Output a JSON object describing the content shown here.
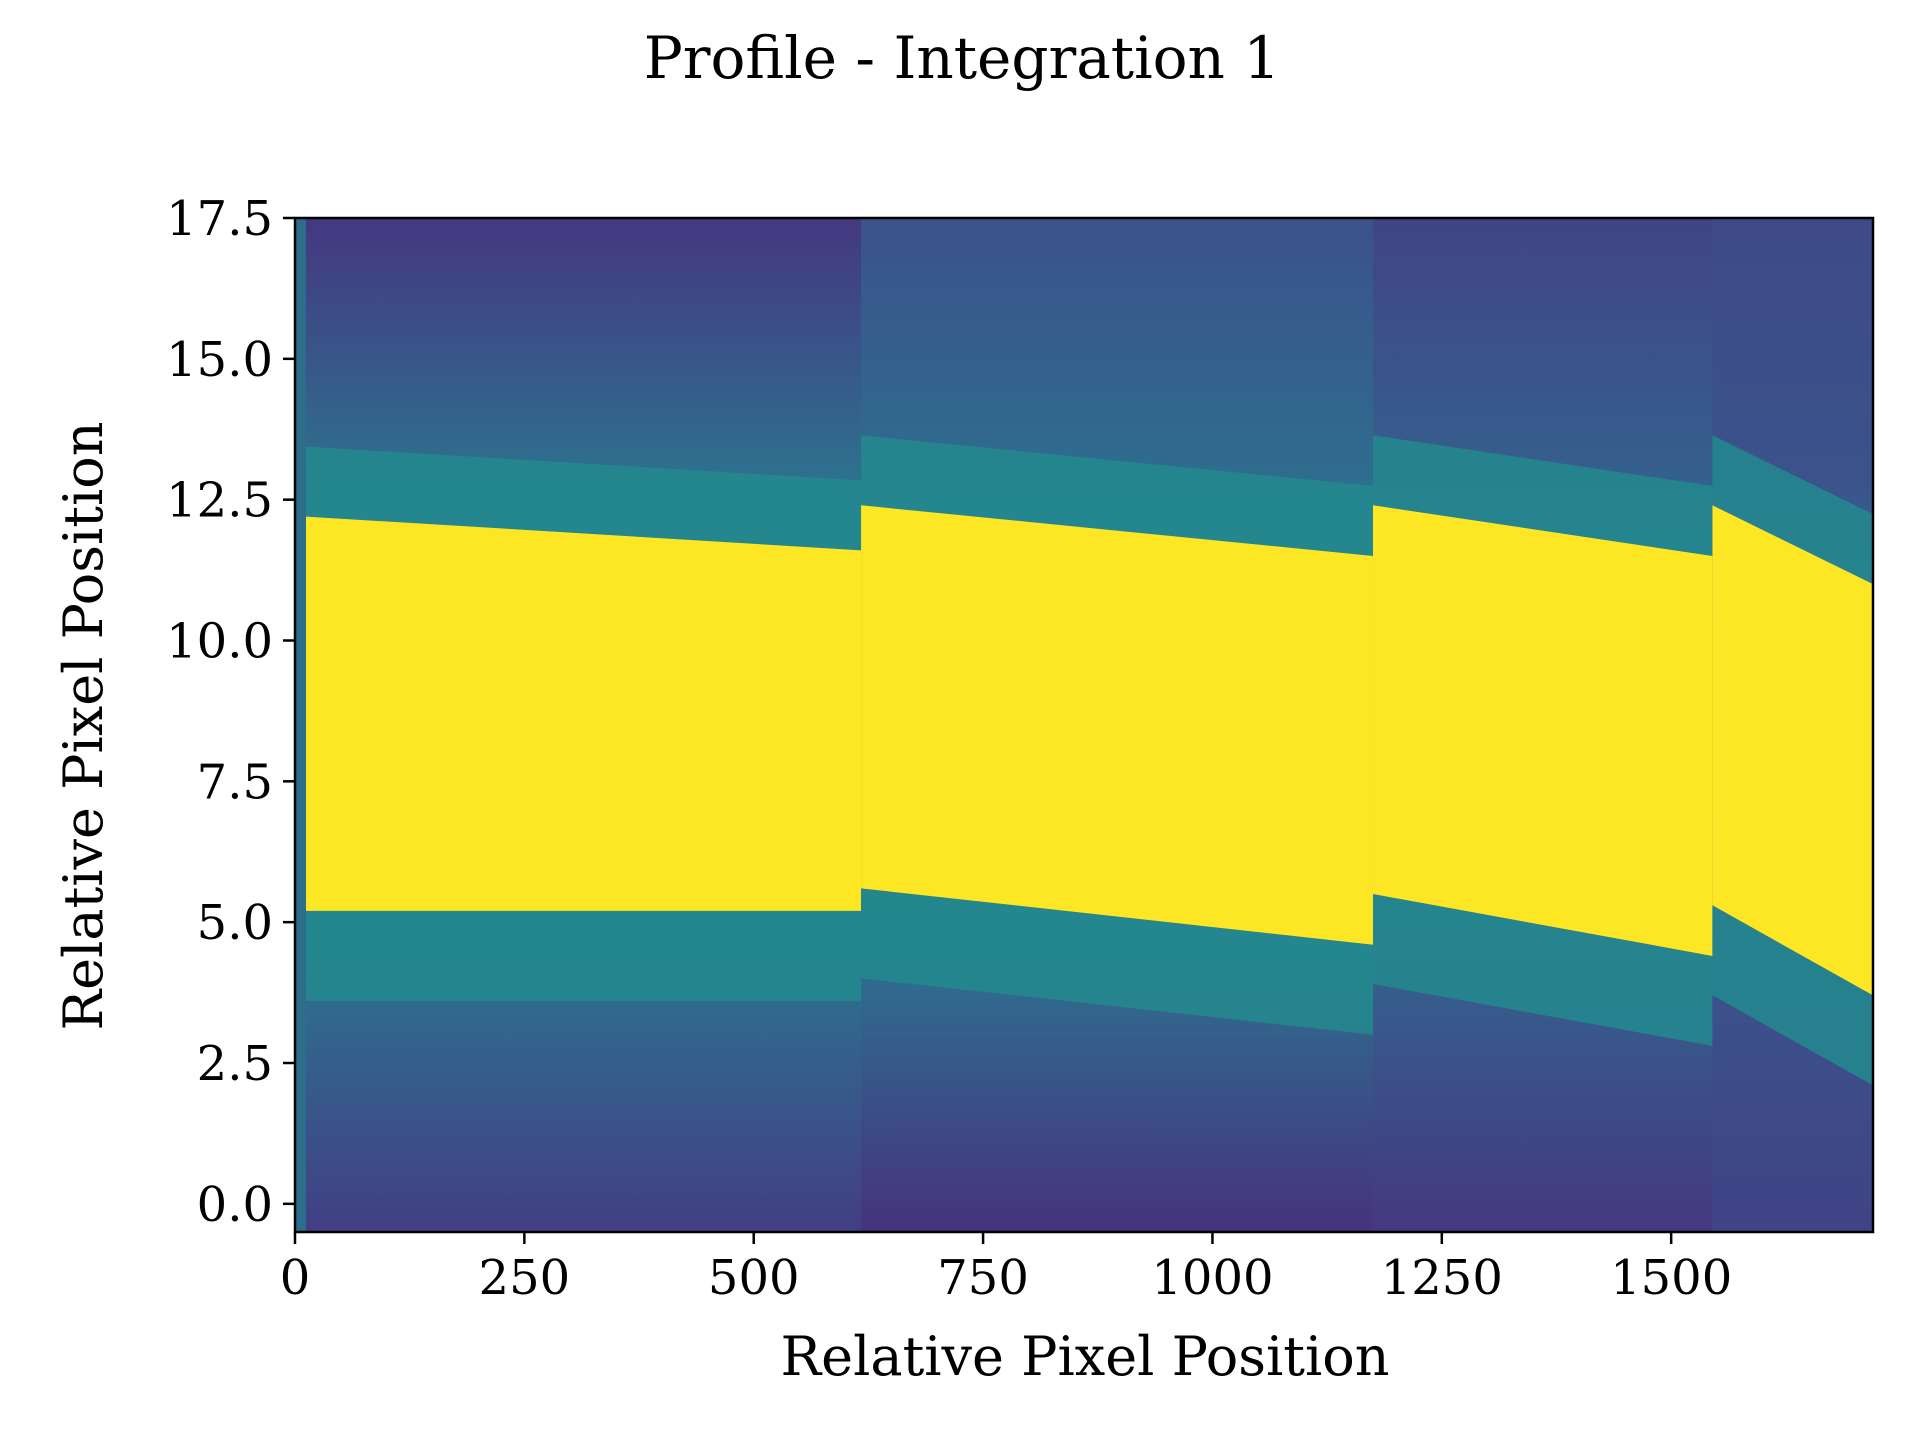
{
  "chart_data": {
    "type": "heatmap",
    "title": "Profile - Integration 1",
    "xlabel": "Relative Pixel Position",
    "ylabel": "Relative Pixel Position",
    "xlim": [
      0,
      1720
    ],
    "ylim": [
      -0.5,
      17.5
    ],
    "x_ticks": [
      0,
      250,
      500,
      750,
      1000,
      1250,
      1500
    ],
    "x_tick_labels": [
      "0",
      "250",
      "500",
      "750",
      "1000",
      "1250",
      "1500"
    ],
    "y_ticks": [
      0.0,
      2.5,
      5.0,
      7.5,
      10.0,
      12.5,
      15.0,
      17.5
    ],
    "y_tick_labels": [
      "0.0",
      "2.5",
      "5.0",
      "7.5",
      "10.0",
      "12.5",
      "15.0",
      "17.5"
    ],
    "colormap": "viridis",
    "grid": false,
    "trace_segments": [
      {
        "x_start": 12,
        "x_end": 617,
        "lower_edge": [
          5.2,
          5.2
        ],
        "upper_edge": [
          12.2,
          11.6
        ]
      },
      {
        "x_start": 617,
        "x_end": 1175,
        "lower_edge": [
          5.6,
          4.6
        ],
        "upper_edge": [
          12.4,
          11.5
        ]
      },
      {
        "x_start": 1175,
        "x_end": 1545,
        "lower_edge": [
          5.5,
          4.4
        ],
        "upper_edge": [
          12.4,
          11.5
        ]
      },
      {
        "x_start": 1545,
        "x_end": 1720,
        "lower_edge": [
          5.3,
          3.7
        ],
        "upper_edge": [
          12.4,
          11.0
        ]
      }
    ]
  }
}
